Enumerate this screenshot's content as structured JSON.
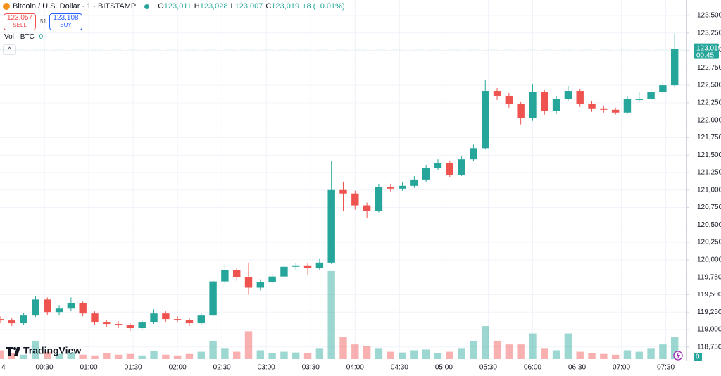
{
  "header": {
    "symbol": "Bitcoin / U.S. Dollar · 1 · BITSTAMP",
    "o_key": "O",
    "o": "123,011",
    "h_key": "H",
    "h": "123,028",
    "l_key": "L",
    "l": "123,007",
    "c_key": "C",
    "c": "123,019",
    "change": "+8 (+0.01%)",
    "sell_price": "123,057",
    "sell": "SELL",
    "spread": "51",
    "buy_price": "123,108",
    "buy": "BUY",
    "volume_label": "Vol · BTC",
    "volume_value": "0",
    "logo": "TradingView"
  },
  "chart_data": {
    "type": "candlestick",
    "x": [
      "00:00",
      "00:08",
      "00:16",
      "00:24",
      "00:32",
      "00:40",
      "00:48",
      "00:56",
      "01:04",
      "01:12",
      "01:20",
      "01:28",
      "01:36",
      "01:44",
      "01:52",
      "02:00",
      "02:08",
      "02:16",
      "02:24",
      "02:32",
      "02:40",
      "02:48",
      "02:56",
      "03:04",
      "03:12",
      "03:20",
      "03:28",
      "03:36",
      "03:44",
      "03:52",
      "04:00",
      "04:08",
      "04:16",
      "04:24",
      "04:32",
      "04:40",
      "04:48",
      "04:56",
      "05:04",
      "05:12",
      "05:20",
      "05:28",
      "05:36",
      "05:44",
      "05:52",
      "06:00",
      "06:08",
      "06:16",
      "06:24",
      "06:32",
      "06:40",
      "06:48",
      "06:56",
      "07:04",
      "07:12",
      "07:20",
      "07:28",
      "07:36"
    ],
    "open": [
      119150,
      119130,
      119090,
      119200,
      119430,
      119250,
      119300,
      119380,
      119230,
      119100,
      119080,
      119060,
      119020,
      119100,
      119230,
      119150,
      119140,
      119090,
      119200,
      119690,
      119850,
      119750,
      119600,
      119680,
      119760,
      119900,
      119910,
      119880,
      119960,
      121000,
      120950,
      120780,
      120700,
      121040,
      121020,
      121060,
      121150,
      121320,
      121390,
      121220,
      121440,
      121600,
      122420,
      122350,
      122230,
      122030,
      122400,
      122130,
      122300,
      122420,
      122230,
      122160,
      122150,
      122110,
      122300,
      122300,
      122400,
      122500
    ],
    "high": [
      119190,
      119170,
      119240,
      119480,
      119460,
      119350,
      119460,
      119400,
      119260,
      119140,
      119120,
      119090,
      119140,
      119290,
      119260,
      119190,
      119170,
      119240,
      119730,
      119930,
      119880,
      119960,
      119720,
      119800,
      119940,
      119960,
      119950,
      120010,
      121420,
      121120,
      120990,
      120820,
      121080,
      121090,
      121110,
      121200,
      121360,
      121440,
      121420,
      121480,
      121650,
      122580,
      122460,
      122390,
      122260,
      122510,
      122430,
      122340,
      122490,
      122450,
      122270,
      122200,
      122180,
      122340,
      122400,
      122440,
      122560,
      123240
    ],
    "low": [
      119090,
      119050,
      119060,
      119180,
      119210,
      119200,
      119270,
      119190,
      119060,
      119040,
      119020,
      118980,
      118990,
      119080,
      119110,
      119100,
      119050,
      119060,
      119180,
      119660,
      119700,
      119500,
      119560,
      119650,
      119740,
      119860,
      119780,
      119850,
      119940,
      120700,
      120720,
      120600,
      120680,
      120980,
      120990,
      121030,
      121120,
      121290,
      121180,
      121200,
      121410,
      121580,
      122290,
      122180,
      121940,
      121990,
      122080,
      122090,
      122280,
      122190,
      122120,
      122110,
      122080,
      122090,
      122260,
      122270,
      122370,
      122480
    ],
    "close": [
      119130,
      119090,
      119200,
      119430,
      119250,
      119300,
      119380,
      119230,
      119100,
      119080,
      119060,
      119020,
      119100,
      119230,
      119150,
      119140,
      119090,
      119200,
      119690,
      119850,
      119750,
      119600,
      119680,
      119760,
      119900,
      119910,
      119880,
      119960,
      121000,
      120950,
      120780,
      120700,
      121040,
      121020,
      121060,
      121150,
      121320,
      121390,
      121220,
      121440,
      121600,
      122420,
      122350,
      122230,
      122030,
      122400,
      122130,
      122300,
      122420,
      122230,
      122160,
      122150,
      122110,
      122300,
      122300,
      122400,
      122500,
      123019
    ],
    "volume": [
      1.2,
      0.8,
      0.6,
      2.5,
      1.0,
      0.7,
      0.9,
      0.6,
      0.5,
      0.8,
      0.6,
      0.7,
      0.5,
      1.1,
      0.6,
      0.5,
      0.7,
      1.0,
      2.5,
      1.5,
      1.0,
      3.8,
      1.2,
      0.8,
      1.0,
      0.9,
      0.8,
      1.5,
      12,
      3.0,
      2.0,
      1.8,
      1.5,
      1.0,
      0.9,
      1.2,
      1.3,
      0.8,
      1.0,
      1.5,
      2.5,
      4.5,
      2.5,
      2.0,
      2.0,
      3.5,
      1.5,
      1.2,
      3.5,
      1.0,
      0.8,
      0.7,
      0.6,
      1.2,
      1.0,
      1.5,
      2.0,
      3.0
    ],
    "up_color": "#26a69a",
    "down_color": "#ef5350",
    "xlim": [
      "00:00",
      "07:44"
    ],
    "day_label": "4",
    "xticks": [
      "00:30",
      "01:00",
      "01:30",
      "02:00",
      "02:30",
      "03:00",
      "03:30",
      "04:00",
      "04:30",
      "05:00",
      "05:30",
      "06:00",
      "06:30",
      "07:00",
      "07:30"
    ],
    "ylim": [
      118576,
      123722
    ],
    "yticks": [
      {
        "value": 118750,
        "label": "118,750"
      },
      {
        "value": 119000,
        "label": "119,000"
      },
      {
        "value": 119250,
        "label": "119,250"
      },
      {
        "value": 119500,
        "label": "119,500"
      },
      {
        "value": 119750,
        "label": "119,750"
      },
      {
        "value": 120000,
        "label": "120,000"
      },
      {
        "value": 120250,
        "label": "120,250"
      },
      {
        "value": 120500,
        "label": "120,500"
      },
      {
        "value": 120750,
        "label": "120,750"
      },
      {
        "value": 121000,
        "label": "121,000"
      },
      {
        "value": 121250,
        "label": "121,250"
      },
      {
        "value": 121500,
        "label": "121,500"
      },
      {
        "value": 121750,
        "label": "121,750"
      },
      {
        "value": 122000,
        "label": "122,000"
      },
      {
        "value": 122250,
        "label": "122,250"
      },
      {
        "value": 122500,
        "label": "122,500"
      },
      {
        "value": 122750,
        "label": "122,750"
      },
      {
        "value": 123000,
        "label": "123,000"
      },
      {
        "value": 123250,
        "label": "123,250"
      },
      {
        "value": 123500,
        "label": "123,500"
      }
    ],
    "vlim": [
      0,
      14
    ],
    "volume_axis_label": "0",
    "last_price": {
      "value": 123019,
      "label": "123,019"
    },
    "countdown": "00:45",
    "grid": true
  }
}
